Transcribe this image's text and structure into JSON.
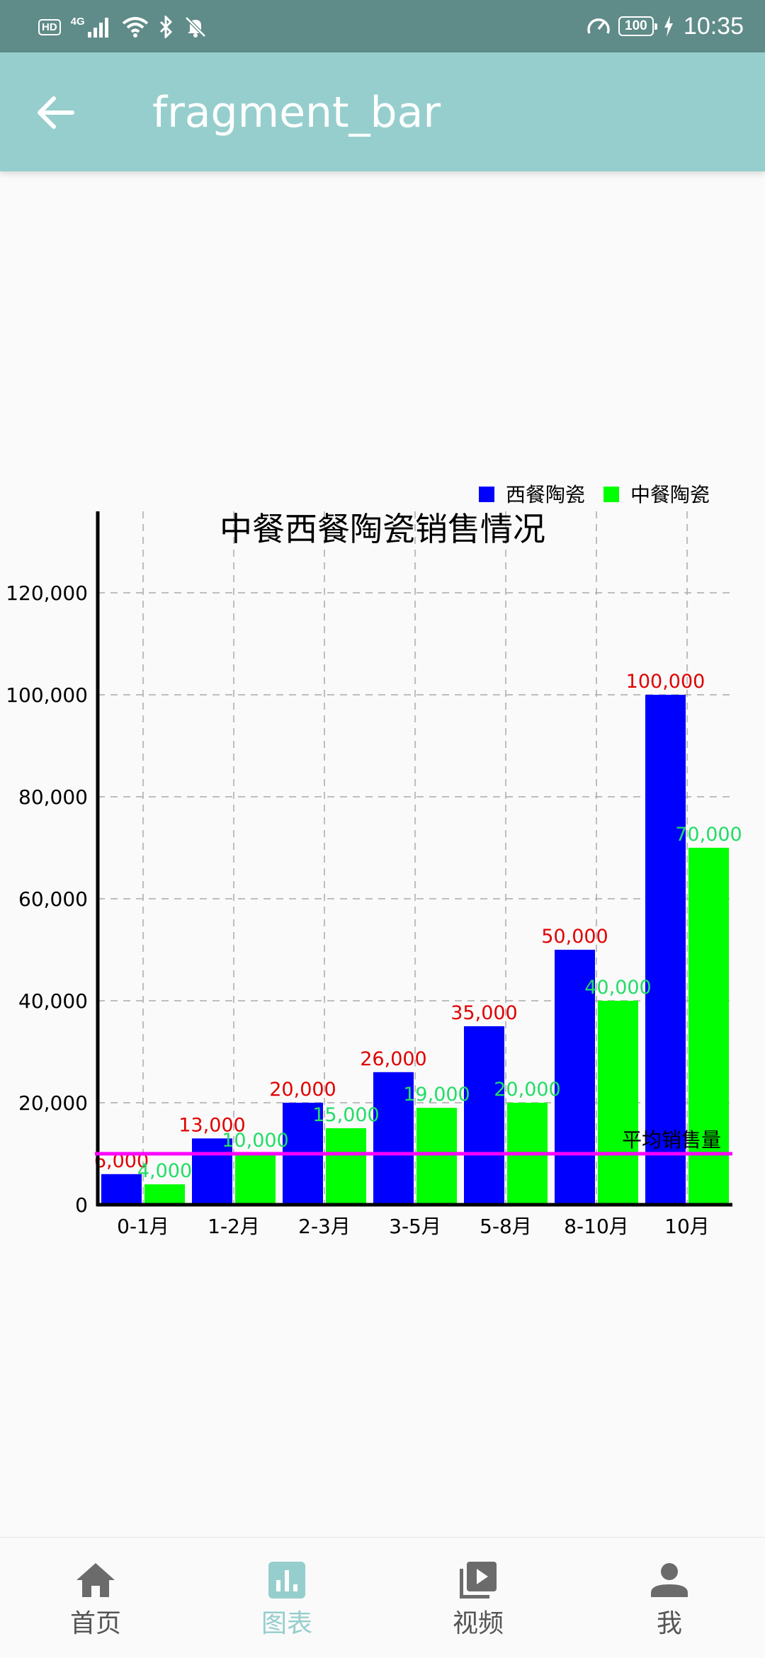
{
  "status_bar": {
    "badge": "HD",
    "network": "4G",
    "battery": "100",
    "time": "10:35",
    "icons": [
      "signal-icon",
      "wifi-icon",
      "bluetooth-icon",
      "mute-bell-icon",
      "speedometer-icon",
      "charging-icon"
    ]
  },
  "app_bar": {
    "back_icon": "arrow-left-icon",
    "title": "fragment_bar"
  },
  "chart_data": {
    "type": "bar",
    "title": "中餐西餐陶瓷销售情况",
    "categories": [
      "0-1月",
      "1-2月",
      "2-3月",
      "3-5月",
      "5-8月",
      "8-10月",
      "10月"
    ],
    "series": [
      {
        "name": "西餐陶瓷",
        "color": "#0000ff",
        "label_color": "#e00000",
        "values": [
          6000,
          13000,
          20000,
          26000,
          35000,
          50000,
          100000
        ],
        "labels": [
          "6,000",
          "13,000",
          "20,000",
          "26,000",
          "35,000",
          "50,000",
          "100,000"
        ]
      },
      {
        "name": "中餐陶瓷",
        "color": "#00ff00",
        "label_color": "#22dd66",
        "values": [
          4000,
          10000,
          15000,
          19000,
          20000,
          40000,
          70000
        ],
        "labels": [
          "4,000",
          "10,000",
          "15,000",
          "19,000",
          "20,000",
          "40,000",
          "70,000"
        ]
      }
    ],
    "ylim": [
      0,
      135000
    ],
    "yticks": [
      0,
      20000,
      40000,
      60000,
      80000,
      100000,
      120000
    ],
    "ytick_labels": [
      "0",
      "20,000",
      "40,000",
      "60,000",
      "80,000",
      "100,000",
      "120,000"
    ],
    "limit_line": {
      "value": 10000,
      "label": "平均销售量",
      "color": "#ff00ff"
    },
    "grid": true,
    "legend_position": "top-right"
  },
  "bottom_nav": {
    "items": [
      {
        "label": "首页",
        "icon": "home-icon",
        "active": false
      },
      {
        "label": "图表",
        "icon": "bar-chart-icon",
        "active": true
      },
      {
        "label": "视频",
        "icon": "video-library-icon",
        "active": false
      },
      {
        "label": "我",
        "icon": "person-icon",
        "active": false
      }
    ],
    "inactive_color": "#555555",
    "active_color": "#96cecd"
  }
}
